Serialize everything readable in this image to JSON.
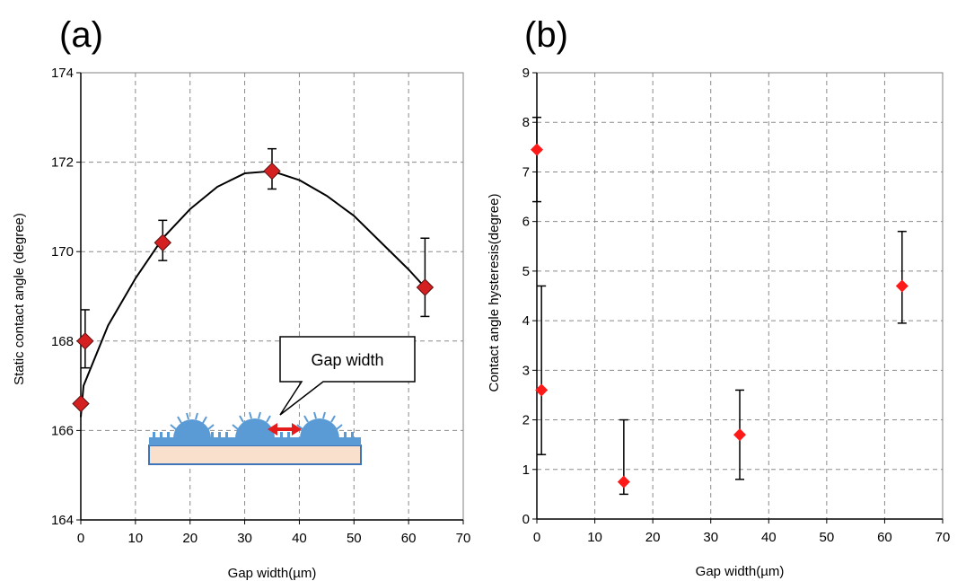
{
  "chart_data": [
    {
      "panel": "(a)",
      "type": "scatter",
      "xlabel": "Gap width(µm)",
      "ylabel": "Static contact angle (degree)",
      "xlim": [
        0,
        70
      ],
      "ylim": [
        164,
        174
      ],
      "x_ticks": [
        0,
        10,
        20,
        30,
        40,
        50,
        60,
        70
      ],
      "y_ticks": [
        164,
        166,
        168,
        170,
        172,
        174
      ],
      "grid": true,
      "marker_color": "#d42020",
      "series": [
        {
          "points": [
            {
              "x": 0,
              "y": 166.6,
              "err_low": null,
              "err_high": null
            },
            {
              "x": 0.8,
              "y": 168.0,
              "err_low": 167.4,
              "err_high": 168.7
            },
            {
              "x": 15,
              "y": 170.2,
              "err_low": 169.8,
              "err_high": 170.7
            },
            {
              "x": 35,
              "y": 171.8,
              "err_low": 171.4,
              "err_high": 172.3
            },
            {
              "x": 63,
              "y": 169.2,
              "err_low": 168.55,
              "err_high": 170.3
            }
          ]
        }
      ],
      "fit_curve": {
        "type": "quadratic",
        "x": [
          0,
          0.5,
          5,
          10,
          15,
          20,
          25,
          30,
          35,
          40,
          45,
          50,
          55,
          60,
          63
        ],
        "y": [
          166.3,
          167.0,
          168.35,
          169.4,
          170.3,
          170.95,
          171.45,
          171.75,
          171.8,
          171.6,
          171.25,
          170.8,
          170.2,
          169.6,
          169.2
        ]
      },
      "annotation": {
        "text": "Gap width",
        "surface_color": "#5b9bd5",
        "substrate_color": "#f8e0cc",
        "arrow_color": "#e51c1c"
      }
    },
    {
      "panel": "(b)",
      "type": "scatter",
      "xlabel": "Gap width(µm)",
      "ylabel": "Contact angle hysteresis(degree)",
      "xlim": [
        0,
        70
      ],
      "ylim": [
        0,
        9
      ],
      "x_ticks": [
        0,
        10,
        20,
        30,
        40,
        50,
        60,
        70
      ],
      "y_ticks": [
        0,
        1,
        2,
        3,
        4,
        5,
        6,
        7,
        8,
        9
      ],
      "grid": true,
      "marker_color": "#ff1a1a",
      "series": [
        {
          "points": [
            {
              "x": 0,
              "y": 7.45,
              "err_low": 6.4,
              "err_high": 8.1
            },
            {
              "x": 0.8,
              "y": 2.6,
              "err_low": 1.3,
              "err_high": 4.7
            },
            {
              "x": 15,
              "y": 0.75,
              "err_low": 0.5,
              "err_high": 2.0
            },
            {
              "x": 35,
              "y": 1.7,
              "err_low": 0.8,
              "err_high": 2.6
            },
            {
              "x": 63,
              "y": 4.7,
              "err_low": 3.95,
              "err_high": 5.8
            }
          ]
        }
      ]
    }
  ]
}
